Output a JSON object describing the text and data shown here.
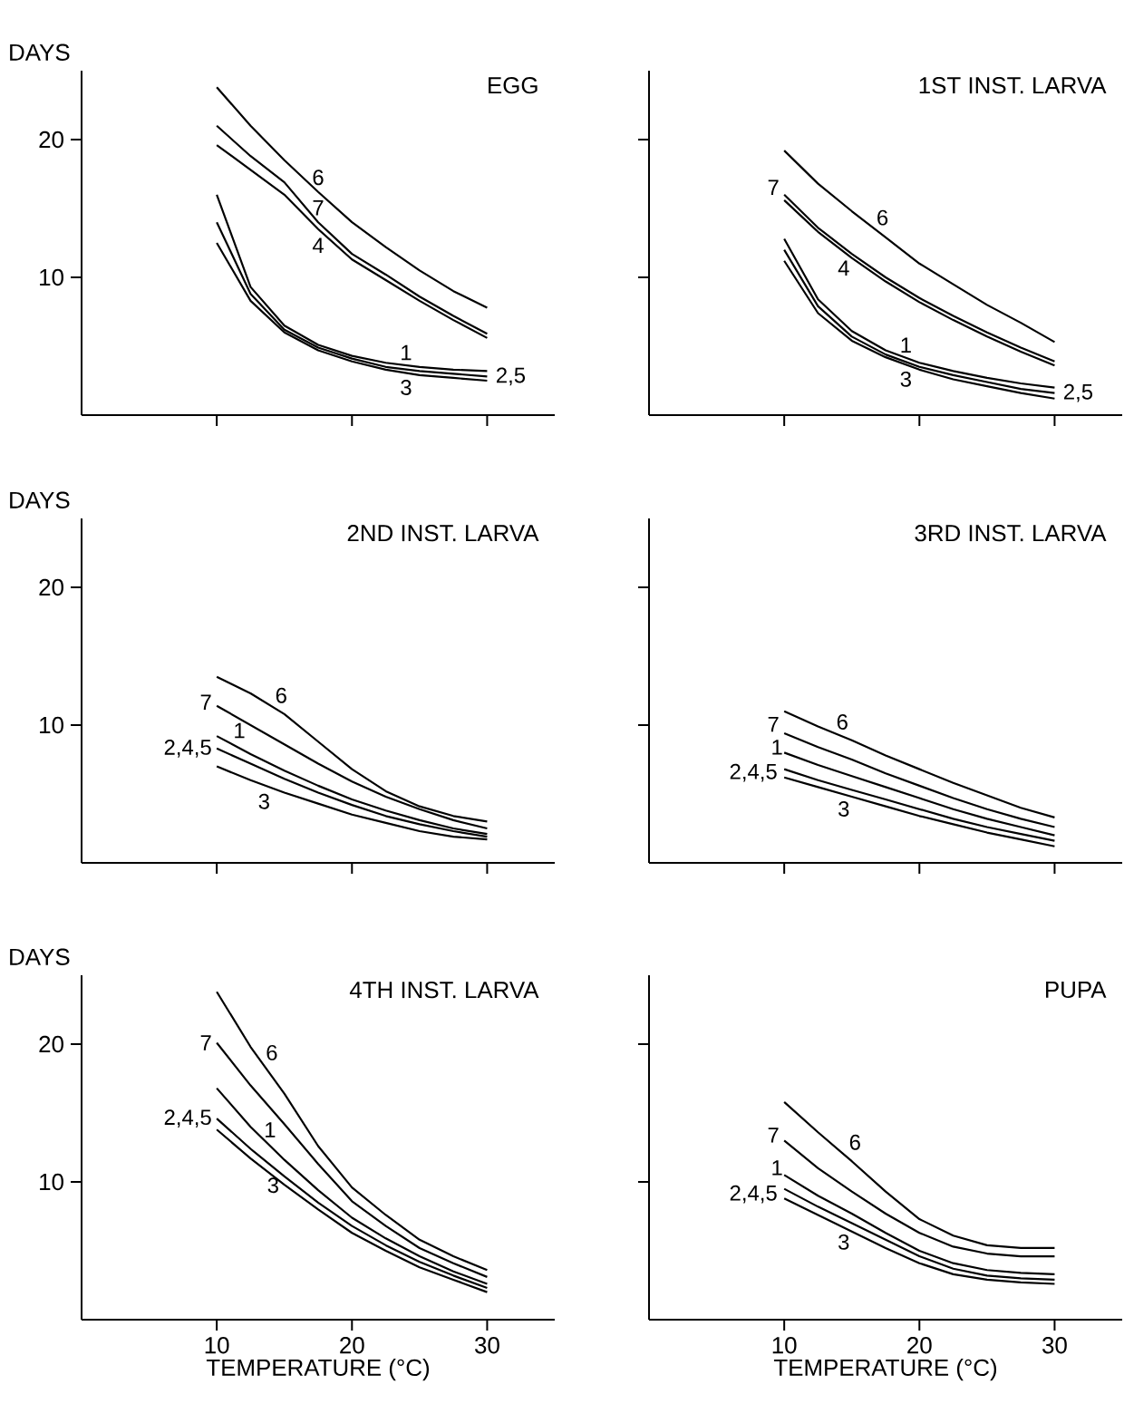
{
  "chart_data": [
    {
      "type": "line",
      "title": "EGG",
      "ylabel": "DAYS",
      "x": [
        10,
        12.5,
        15,
        17.5,
        20,
        22.5,
        25,
        27.5,
        30
      ],
      "xlim": [
        0,
        35
      ],
      "ylim": [
        0,
        25
      ],
      "xticks": [
        10,
        20,
        30
      ],
      "yticks": [
        10,
        20
      ],
      "tick_labels": "y",
      "series": [
        {
          "name": "6",
          "color": "#000000",
          "values": [
            23.8,
            21.0,
            18.5,
            16.2,
            14.0,
            12.2,
            10.5,
            9.0,
            7.8
          ]
        },
        {
          "name": "7",
          "color": "#000000",
          "values": [
            21.0,
            18.8,
            16.9,
            14.0,
            11.7,
            10.2,
            8.6,
            7.2,
            5.9
          ]
        },
        {
          "name": "4",
          "color": "#000000",
          "values": [
            19.6,
            17.8,
            16.0,
            13.5,
            11.3,
            9.8,
            8.3,
            6.9,
            5.6
          ]
        },
        {
          "name": "1",
          "color": "#000000",
          "values": [
            16.0,
            9.3,
            6.5,
            5.1,
            4.3,
            3.8,
            3.5,
            3.3,
            3.2
          ]
        },
        {
          "name": "2,5",
          "color": "#000000",
          "values": [
            14.0,
            8.8,
            6.2,
            4.9,
            4.1,
            3.5,
            3.2,
            3.0,
            2.8
          ]
        },
        {
          "name": "3",
          "color": "#000000",
          "values": [
            12.5,
            8.3,
            6.0,
            4.7,
            3.9,
            3.3,
            2.9,
            2.7,
            2.5
          ]
        }
      ]
    },
    {
      "type": "line",
      "title": "1ST INST. LARVA",
      "x": [
        10,
        12.5,
        15,
        17.5,
        20,
        22.5,
        25,
        27.5,
        30
      ],
      "xlim": [
        0,
        35
      ],
      "ylim": [
        0,
        25
      ],
      "xticks": [
        10,
        20,
        30
      ],
      "yticks": [
        10,
        20
      ],
      "tick_labels": false,
      "series": [
        {
          "name": "6",
          "color": "#000000",
          "values": [
            19.2,
            16.8,
            14.8,
            12.9,
            11.0,
            9.5,
            8.0,
            6.7,
            5.3
          ]
        },
        {
          "name": "7",
          "color": "#000000",
          "values": [
            16.0,
            13.6,
            11.7,
            10.0,
            8.5,
            7.2,
            6.0,
            4.9,
            3.9
          ]
        },
        {
          "name": "4",
          "color": "#000000",
          "values": [
            15.6,
            13.3,
            11.4,
            9.7,
            8.2,
            6.9,
            5.7,
            4.6,
            3.6
          ]
        },
        {
          "name": "1",
          "color": "#000000",
          "values": [
            12.8,
            8.4,
            6.1,
            4.7,
            3.8,
            3.2,
            2.7,
            2.3,
            2.0
          ]
        },
        {
          "name": "2,5",
          "color": "#000000",
          "values": [
            12.0,
            7.9,
            5.7,
            4.4,
            3.5,
            2.9,
            2.4,
            1.9,
            1.6
          ]
        },
        {
          "name": "3",
          "color": "#000000",
          "values": [
            11.2,
            7.4,
            5.4,
            4.2,
            3.3,
            2.6,
            2.1,
            1.6,
            1.2
          ]
        }
      ]
    },
    {
      "type": "line",
      "title": "2ND INST. LARVA",
      "ylabel": "DAYS",
      "x": [
        10,
        12.5,
        15,
        17.5,
        20,
        22.5,
        25,
        27.5,
        30
      ],
      "xlim": [
        0,
        35
      ],
      "ylim": [
        0,
        25
      ],
      "xticks": [
        10,
        20,
        30
      ],
      "yticks": [
        10,
        20
      ],
      "tick_labels": "y",
      "series": [
        {
          "name": "6",
          "color": "#000000",
          "values": [
            13.5,
            12.3,
            10.8,
            8.8,
            6.8,
            5.2,
            4.1,
            3.4,
            3.0
          ]
        },
        {
          "name": "7",
          "color": "#000000",
          "values": [
            11.4,
            10.0,
            8.6,
            7.2,
            5.9,
            4.8,
            3.9,
            3.1,
            2.5
          ]
        },
        {
          "name": "1",
          "color": "#000000",
          "values": [
            9.2,
            7.9,
            6.7,
            5.6,
            4.6,
            3.8,
            3.1,
            2.5,
            2.1
          ]
        },
        {
          "name": "2,4,5",
          "color": "#000000",
          "values": [
            8.3,
            7.2,
            6.1,
            5.1,
            4.2,
            3.4,
            2.8,
            2.3,
            1.9
          ]
        },
        {
          "name": "3",
          "color": "#000000",
          "values": [
            7.0,
            6.0,
            5.1,
            4.3,
            3.5,
            2.9,
            2.3,
            1.9,
            1.7
          ]
        }
      ]
    },
    {
      "type": "line",
      "title": "3RD INST. LARVA",
      "x": [
        10,
        12.5,
        15,
        17.5,
        20,
        22.5,
        25,
        27.5,
        30
      ],
      "xlim": [
        0,
        35
      ],
      "ylim": [
        0,
        25
      ],
      "xticks": [
        10,
        20,
        30
      ],
      "yticks": [
        10,
        20
      ],
      "tick_labels": false,
      "series": [
        {
          "name": "6",
          "color": "#000000",
          "values": [
            11.0,
            9.9,
            8.9,
            7.8,
            6.8,
            5.8,
            4.9,
            4.0,
            3.3
          ]
        },
        {
          "name": "7",
          "color": "#000000",
          "values": [
            9.4,
            8.4,
            7.5,
            6.5,
            5.6,
            4.7,
            3.9,
            3.2,
            2.6
          ]
        },
        {
          "name": "1",
          "color": "#000000",
          "values": [
            8.0,
            7.1,
            6.3,
            5.5,
            4.7,
            3.9,
            3.2,
            2.6,
            2.0
          ]
        },
        {
          "name": "2,4,5",
          "color": "#000000",
          "values": [
            6.8,
            6.0,
            5.3,
            4.6,
            3.9,
            3.2,
            2.6,
            2.1,
            1.6
          ]
        },
        {
          "name": "3",
          "color": "#000000",
          "values": [
            6.2,
            5.5,
            4.8,
            4.1,
            3.4,
            2.8,
            2.2,
            1.7,
            1.2
          ]
        }
      ]
    },
    {
      "type": "line",
      "title": "4TH INST. LARVA",
      "ylabel": "DAYS",
      "xlabel": "TEMPERATURE (°C)",
      "x": [
        10,
        12.5,
        15,
        17.5,
        20,
        22.5,
        25,
        27.5,
        30
      ],
      "xlim": [
        0,
        35
      ],
      "ylim": [
        0,
        25
      ],
      "xticks": [
        10,
        20,
        30
      ],
      "yticks": [
        10,
        20
      ],
      "series": [
        {
          "name": "6",
          "color": "#000000",
          "values": [
            23.8,
            19.8,
            16.4,
            12.6,
            9.6,
            7.6,
            5.8,
            4.6,
            3.6
          ]
        },
        {
          "name": "7",
          "color": "#000000",
          "values": [
            20.1,
            17.0,
            14.2,
            11.3,
            8.6,
            6.8,
            5.2,
            4.1,
            3.1
          ]
        },
        {
          "name": "1",
          "color": "#000000",
          "values": [
            16.8,
            14.0,
            11.6,
            9.4,
            7.4,
            5.9,
            4.6,
            3.5,
            2.6
          ]
        },
        {
          "name": "2,4,5",
          "color": "#000000",
          "values": [
            14.6,
            12.4,
            10.4,
            8.5,
            6.8,
            5.4,
            4.2,
            3.2,
            2.3
          ]
        },
        {
          "name": "3",
          "color": "#000000",
          "values": [
            13.8,
            11.7,
            9.8,
            8.0,
            6.3,
            5.0,
            3.8,
            2.9,
            2.0
          ]
        }
      ]
    },
    {
      "type": "line",
      "title": "PUPA",
      "xlabel": "TEMPERATURE (°C)",
      "x": [
        10,
        12.5,
        15,
        17.5,
        20,
        22.5,
        25,
        27.5,
        30
      ],
      "xlim": [
        0,
        35
      ],
      "ylim": [
        0,
        25
      ],
      "xticks": [
        10,
        20,
        30
      ],
      "yticks": [
        10,
        20
      ],
      "tick_labels": "x",
      "series": [
        {
          "name": "6",
          "color": "#000000",
          "values": [
            15.8,
            13.6,
            11.5,
            9.3,
            7.3,
            6.1,
            5.4,
            5.2,
            5.2
          ]
        },
        {
          "name": "7",
          "color": "#000000",
          "values": [
            13.0,
            11.0,
            9.3,
            7.7,
            6.3,
            5.3,
            4.8,
            4.6,
            4.6
          ]
        },
        {
          "name": "1",
          "color": "#000000",
          "values": [
            10.5,
            9.0,
            7.7,
            6.3,
            5.0,
            4.1,
            3.6,
            3.4,
            3.3
          ]
        },
        {
          "name": "2,4,5",
          "color": "#000000",
          "values": [
            9.5,
            8.2,
            7.0,
            5.8,
            4.6,
            3.7,
            3.2,
            3.0,
            2.9
          ]
        },
        {
          "name": "3",
          "color": "#000000",
          "values": [
            8.8,
            7.6,
            6.4,
            5.2,
            4.1,
            3.3,
            2.9,
            2.7,
            2.6
          ]
        }
      ]
    }
  ]
}
